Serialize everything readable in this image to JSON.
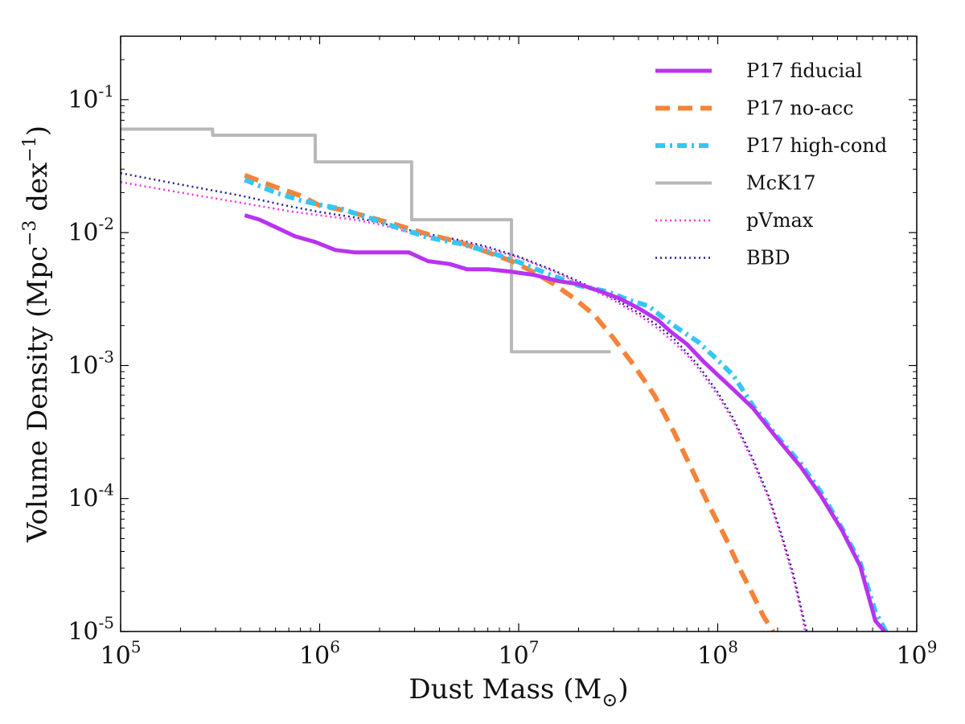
{
  "chart_data": {
    "type": "line",
    "title": "",
    "xlabel": "Dust Mass (M",
    "xlabel_subscript": "⊙",
    "xlabel_close": ")",
    "ylabel": {
      "prefix": "Volume Density (Mpc",
      "sup1": "−3",
      "middle": " dex",
      "sup2": "−1",
      "suffix": ")"
    },
    "xscale": "log",
    "yscale": "log",
    "xlim": [
      100000,
      1000000000
    ],
    "ylim": [
      1e-05,
      0.3
    ],
    "x_ticks": [
      {
        "value": 100000,
        "base": "10",
        "exp": "5"
      },
      {
        "value": 1000000,
        "base": "10",
        "exp": "6"
      },
      {
        "value": 10000000,
        "base": "10",
        "exp": "7"
      },
      {
        "value": 100000000,
        "base": "10",
        "exp": "8"
      },
      {
        "value": 1000000000,
        "base": "10",
        "exp": "9"
      }
    ],
    "y_ticks": [
      {
        "value": 1e-05,
        "base": "10",
        "exp": "-5"
      },
      {
        "value": 0.0001,
        "base": "10",
        "exp": "-4"
      },
      {
        "value": 0.001,
        "base": "10",
        "exp": "-3"
      },
      {
        "value": 0.01,
        "base": "10",
        "exp": "-2"
      },
      {
        "value": 0.1,
        "base": "10",
        "exp": "-1"
      }
    ],
    "legend_position": "top-right",
    "series": [
      {
        "name": "P17 fiducial",
        "color": "#b833f0",
        "style": "solid",
        "x": [
          420000,
          500000,
          600000,
          750000,
          950000,
          1200000,
          1500000,
          2000000,
          2800000,
          3500000,
          4500000,
          5500000,
          7000000,
          9000000,
          12000000,
          16000000,
          20000000,
          26000000,
          32000000,
          40000000,
          50000000,
          58000000,
          70000000,
          85000000,
          100000000,
          120000000,
          150000000,
          200000000,
          260000000,
          330000000,
          420000000,
          520000000,
          620000000,
          690000000
        ],
        "y": [
          0.0135,
          0.0125,
          0.011,
          0.0094,
          0.0085,
          0.0074,
          0.0071,
          0.0071,
          0.0071,
          0.0061,
          0.0058,
          0.0053,
          0.0053,
          0.0051,
          0.0048,
          0.0043,
          0.0041,
          0.0036,
          0.0032,
          0.0027,
          0.0022,
          0.0018,
          0.00145,
          0.00107,
          0.00085,
          0.00066,
          0.00048,
          0.00028,
          0.000175,
          0.000105,
          5.8e-05,
          3.1e-05,
          1.2e-05,
          1e-05
        ]
      },
      {
        "name": "P17 no-acc",
        "color": "#f5833a",
        "style": "dashed",
        "x": [
          420000,
          600000,
          800000,
          1000000,
          1300000,
          1800000,
          2500000,
          3500000,
          5000000,
          7000000,
          9500000,
          12000000,
          15000000,
          19000000,
          24000000,
          30000000,
          38000000,
          48000000,
          60000000,
          75000000,
          90000000,
          110000000,
          130000000,
          150000000,
          170000000,
          190000000
        ],
        "y": [
          0.027,
          0.022,
          0.019,
          0.016,
          0.0148,
          0.013,
          0.0113,
          0.0097,
          0.0085,
          0.0071,
          0.006,
          0.005,
          0.0041,
          0.0032,
          0.0024,
          0.0016,
          0.001,
          0.0006,
          0.00032,
          0.00016,
          9e-05,
          5e-05,
          2.9e-05,
          1.9e-05,
          1.3e-05,
          1e-05
        ]
      },
      {
        "name": "P17 high-cond",
        "color": "#35c6f4",
        "style": "dashdot",
        "x": [
          420000,
          600000,
          800000,
          1000000,
          1300000,
          1800000,
          2500000,
          3500000,
          5000000,
          7000000,
          10000000,
          14000000,
          20000000,
          28000000,
          36000000,
          45000000,
          55000000,
          65000000,
          80000000,
          100000000,
          120000000,
          150000000,
          200000000,
          260000000,
          330000000,
          420000000,
          520000000,
          620000000,
          700000000
        ],
        "y": [
          0.025,
          0.02,
          0.0175,
          0.0162,
          0.015,
          0.0128,
          0.0108,
          0.0092,
          0.0083,
          0.0072,
          0.006,
          0.0049,
          0.004,
          0.0036,
          0.0031,
          0.0028,
          0.0022,
          0.00185,
          0.0015,
          0.0011,
          0.00084,
          0.0005,
          0.00029,
          0.000185,
          0.000112,
          6e-05,
          3.3e-05,
          1.4e-05,
          1e-05
        ]
      },
      {
        "name": "McK17",
        "color": "#b8b8b8",
        "style": "step",
        "x": [
          100000,
          290000,
          290000,
          950000,
          950000,
          2900000,
          2900000,
          9200000,
          9200000,
          29000000
        ],
        "y": [
          0.06,
          0.06,
          0.054,
          0.054,
          0.034,
          0.034,
          0.0125,
          0.0125,
          0.00127,
          0.00127
        ]
      },
      {
        "name": "pVmax",
        "color": "#ff2fe6",
        "style": "dotted",
        "x": [
          100000,
          200000,
          400000,
          700000,
          1000000,
          1500000,
          2000000,
          3000000,
          5000000,
          7000000,
          10000000,
          15000000,
          20000000,
          30000000,
          40000000,
          50000000,
          60000000,
          70000000,
          80000000,
          100000000,
          120000000,
          150000000,
          180000000,
          210000000,
          240000000,
          260000000,
          275000000
        ],
        "y": [
          0.024,
          0.02,
          0.0168,
          0.0145,
          0.0135,
          0.0125,
          0.0115,
          0.0098,
          0.0086,
          0.0076,
          0.0065,
          0.0051,
          0.0042,
          0.0031,
          0.0024,
          0.0019,
          0.0015,
          0.0012,
          0.00095,
          0.0006,
          0.00038,
          0.00019,
          0.0001,
          5e-05,
          2.5e-05,
          1.5e-05,
          1e-05
        ]
      },
      {
        "name": "BBD",
        "color": "#1f1f8f",
        "style": "dotted",
        "x": [
          100000,
          200000,
          400000,
          700000,
          1000000,
          1500000,
          2000000,
          3000000,
          5000000,
          7000000,
          10000000,
          15000000,
          20000000,
          30000000,
          40000000,
          50000000,
          60000000,
          70000000,
          80000000,
          100000000,
          120000000,
          150000000,
          180000000,
          210000000,
          240000000,
          260000000,
          280000000
        ],
        "y": [
          0.028,
          0.023,
          0.019,
          0.0158,
          0.0143,
          0.013,
          0.0119,
          0.0102,
          0.0088,
          0.0078,
          0.0066,
          0.0052,
          0.0043,
          0.0032,
          0.0025,
          0.002,
          0.0016,
          0.00125,
          0.001,
          0.00063,
          0.0004,
          0.0002,
          0.000105,
          5.3e-05,
          2.7e-05,
          1.6e-05,
          1e-05
        ]
      }
    ]
  }
}
